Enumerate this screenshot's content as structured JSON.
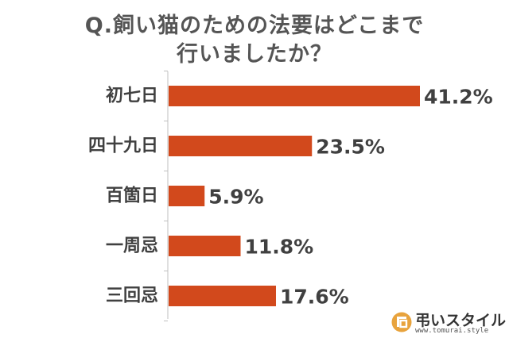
{
  "chart_data": {
    "type": "bar",
    "orientation": "horizontal",
    "title_lines": [
      "Q.飼い猫のための法要はどこまで",
      "行いましたか？"
    ],
    "categories": [
      "初七日",
      "四十九日",
      "百箇日",
      "一周忌",
      "三回忌"
    ],
    "values": [
      41.2,
      23.5,
      5.9,
      11.8,
      17.6
    ],
    "value_labels": [
      "41.2%",
      "23.5%",
      "5.9%",
      "11.8%",
      "17.6%"
    ],
    "xlim": [
      0,
      41.2
    ],
    "grid": false,
    "bar_color": "#d2491c",
    "axis_color": "#bfbfbf",
    "text_color": "#404040"
  },
  "logo": {
    "name": "弔いスタイル",
    "url": "www.tomurai.style",
    "icon": "tomurai-logo-icon",
    "color": "#e8a33d"
  }
}
